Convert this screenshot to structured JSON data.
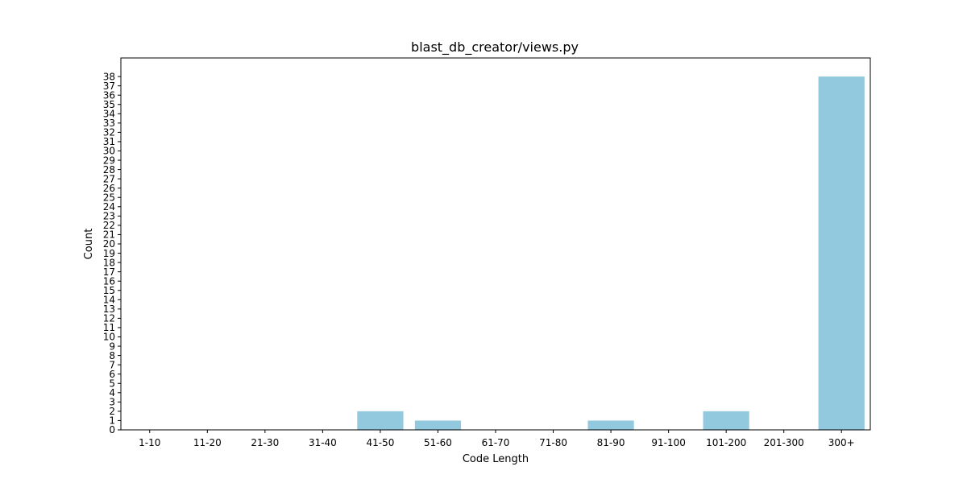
{
  "chart_data": {
    "type": "bar",
    "title": "blast_db_creator/views.py",
    "xlabel": "Code Length",
    "ylabel": "Count",
    "categories": [
      "1-10",
      "11-20",
      "21-30",
      "31-40",
      "41-50",
      "51-60",
      "61-70",
      "71-80",
      "81-90",
      "91-100",
      "101-200",
      "201-300",
      "300+"
    ],
    "values": [
      0,
      0,
      0,
      0,
      2,
      1,
      0,
      0,
      1,
      0,
      2,
      0,
      38
    ],
    "ylim": [
      0,
      40
    ],
    "y_ticks": [
      0,
      1,
      2,
      3,
      4,
      5,
      6,
      7,
      8,
      9,
      10,
      11,
      12,
      13,
      14,
      15,
      16,
      17,
      18,
      19,
      20,
      21,
      22,
      23,
      24,
      25,
      26,
      27,
      28,
      29,
      30,
      31,
      32,
      33,
      34,
      35,
      36,
      37,
      38
    ],
    "bar_color": "#92c9de",
    "grid": false,
    "legend": "none"
  }
}
